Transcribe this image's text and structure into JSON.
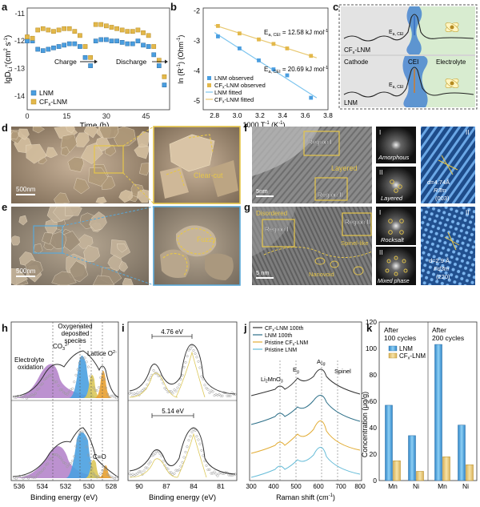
{
  "colors": {
    "lnm": "#4a9ee0",
    "cflnm": "#e3b84a",
    "lnm_fill": "#5aa8e8",
    "cflnm_fill": "#ead28a",
    "sem_box_yellow": "#e6c64a",
    "sem_box_blue": "#5aa8d8",
    "xps_purple": "#b07ec8",
    "xps_blue": "#4aa0e0",
    "xps_yellow": "#dcc85a",
    "xps_orange": "#e8a030",
    "raman_black": "#333333",
    "raman_teal": "#2c6f88",
    "raman_orange": "#e2ac34",
    "raman_lightblue": "#66bcd8"
  },
  "panel_labels": [
    "a",
    "b",
    "c",
    "d",
    "e",
    "f",
    "g",
    "h",
    "i",
    "j",
    "k"
  ],
  "panel_a": {
    "ylabel": "lgD",
    "ylabel_sub": "Li",
    "ylabel_sup": "+",
    "ylabel_unit": "(cm",
    "ylabel_unit_sup": "2",
    "ylabel_unit_end": " s",
    "ylabel_unit_sup2": "-1",
    "ylabel_close": ")",
    "xlabel": "Time (h)",
    "yticks": [
      "-11",
      "-12",
      "-13",
      "-14"
    ],
    "xticks": [
      "0",
      "15",
      "30",
      "45"
    ],
    "charge_label": "Charge",
    "discharge_label": "Discharge",
    "legend": [
      {
        "name": "LNM"
      },
      {
        "name_prefix": "CF",
        "name_sub": "x",
        "name_suffix": "-LNM"
      }
    ]
  },
  "panel_b": {
    "ylabel_pre": "ln (R",
    "ylabel_sup": "-1",
    "ylabel_mid": ") (Ohm",
    "ylabel_sup2": "-1",
    "ylabel_close": ")",
    "xlabel_pre": "1000 T",
    "xlabel_sup": "-1",
    "xlabel_post": " (K",
    "xlabel_sup2": "-1",
    "xlabel_close": ")",
    "yticks": [
      "-2",
      "-3",
      "-4",
      "-5"
    ],
    "xticks": [
      "2.8",
      "3.0",
      "3.2",
      "3.4",
      "3.6",
      "3.8"
    ],
    "ea_top_text": "E",
    "ea_top_sub": "a, CEI",
    "ea_top_value": " = 12.58 kJ mol",
    "ea_top_sup": "-1",
    "ea_bot_text": "E",
    "ea_bot_sub": "a, CEI",
    "ea_bot_value": " = 20.69 kJ mol",
    "ea_bot_sup": "-1",
    "legend": [
      {
        "text": "LNM observed"
      },
      {
        "text_prefix": "CF",
        "text_sub": "x",
        "text_suffix": "-LNM observed"
      },
      {
        "text": "LNM fitted"
      },
      {
        "text_prefix": "CF",
        "text_sub": "x",
        "text_suffix": "-LNM fitted"
      }
    ]
  },
  "panel_c": {
    "top_label_prefix": "CF",
    "top_label_sub": "x",
    "top_label_suffix": "-LNM",
    "ea_label": "E",
    "ea_label_sub": "a, CEI",
    "cathode": "Cathode",
    "cei": "CEI",
    "electrolyte": "Electrolyte",
    "bottom_label": "LNM"
  },
  "panel_d": {
    "scale": "500nm",
    "zoom_label": "Clear-cut"
  },
  "panel_e": {
    "scale": "500nm",
    "zoom_label": "Fuzzy"
  },
  "panel_f": {
    "scale": "5nm",
    "region1": "Region I",
    "region2": "Region II",
    "layered": "Layered",
    "fft1_num": "I",
    "fft1_label": "Amorphous",
    "fft2_num": "II",
    "fft2_label": "Layered",
    "lattice_num": "II",
    "lattice_d": "d=4.74Å",
    "lattice_group": "R3̄m",
    "lattice_plane": "(003)"
  },
  "panel_g": {
    "scale": "5 nm",
    "disordered": "Disordered",
    "region1": "Region I",
    "region2": "Region II",
    "spinel": "Spinel-like",
    "nanovoid": "Nanovoid",
    "fft1_num": "I",
    "fft1_label": "Rocksalt",
    "fft2_num": "II",
    "fft2_label": "Mixed phase",
    "lattice_num": "II",
    "lattice_d": "d=2.9 Å",
    "lattice_group": "Fd3̄m",
    "lattice_plane": "(220)"
  },
  "panel_h": {
    "xlabel": "Binding energy (eV)",
    "xticks": [
      "536",
      "534",
      "532",
      "530",
      "528"
    ],
    "oxygenated_1": "Oxygenated",
    "oxygenated_2": "deposited",
    "oxygenated_3": "species",
    "co3": "CO",
    "co3_sub": "3",
    "co3_sup": "2-",
    "lattice": "Lattice O",
    "lattice_sup": "2-",
    "electrolyte_1": "Electrolyte",
    "electrolyte_2": "oxidation",
    "co": "C=O"
  },
  "panel_i": {
    "xlabel": "Binding energy (eV)",
    "xticks": [
      "90",
      "87",
      "84",
      "81"
    ],
    "gap_top": "4.76 eV",
    "gap_bottom": "5.14 eV"
  },
  "panel_j": {
    "xlabel_pre": "Raman shift (cm",
    "xlabel_sup": "-1",
    "xlabel_close": ")",
    "xticks": [
      "300",
      "400",
      "500",
      "600",
      "700",
      "800"
    ],
    "legend": [
      {
        "prefix": "CF",
        "sub": "x",
        "suffix": "-LNM 100th"
      },
      {
        "text": "LNM 100th"
      },
      {
        "prefix": "Pristine CF",
        "sub": "x",
        "suffix": "-LNM"
      },
      {
        "text": "Pristine LNM"
      }
    ],
    "li2mno3": "Li",
    "li2mno3_sub": "2",
    "li2mno3_mid": "MnO",
    "li2mno3_sub2": "3",
    "eg": "E",
    "eg_sub": "g",
    "a1g": "A",
    "a1g_sub": "1g",
    "spinel": "Spinel"
  },
  "chart_data": [
    {
      "panel": "a",
      "type": "scatter",
      "xlabel": "Time (h)",
      "ylabel": "lgD_Li+ (cm2 s-1)",
      "xlim": [
        0,
        54
      ],
      "ylim": [
        -14.5,
        -10.8
      ],
      "series": [
        {
          "name": "LNM",
          "x": [
            0,
            2,
            4,
            6,
            8,
            10,
            12,
            14,
            16,
            18,
            20,
            22,
            24,
            26,
            28,
            30,
            32,
            34,
            36,
            38,
            40,
            42,
            44,
            46,
            48,
            50,
            52
          ],
          "values": [
            -12.0,
            -12.0,
            -12.3,
            -12.35,
            -12.3,
            -12.25,
            -12.2,
            -12.15,
            -12.1,
            -12.1,
            -12.2,
            -12.6,
            -12.9,
            -12.0,
            -11.95,
            -11.95,
            -12.0,
            -12.0,
            -12.05,
            -12.1,
            -12.1,
            -12.0,
            -12.15,
            -12.2,
            -12.5,
            -12.9,
            -13.6
          ]
        },
        {
          "name": "CFx-LNM",
          "x": [
            0,
            2,
            4,
            6,
            8,
            10,
            12,
            14,
            16,
            18,
            20,
            22,
            24,
            26,
            28,
            30,
            32,
            34,
            36,
            38,
            40,
            42,
            44,
            46,
            48,
            50,
            52
          ],
          "values": [
            -11.85,
            -11.9,
            -11.6,
            -11.55,
            -11.6,
            -11.65,
            -11.6,
            -11.55,
            -11.55,
            -11.65,
            -11.8,
            -12.2,
            -12.6,
            -11.4,
            -11.4,
            -11.45,
            -11.5,
            -11.55,
            -11.6,
            -11.65,
            -11.65,
            -11.6,
            -11.7,
            -11.8,
            -12.2,
            -12.7,
            -13.3
          ]
        }
      ]
    },
    {
      "panel": "b",
      "type": "scatter",
      "xlabel": "1000 T-1 (K-1)",
      "ylabel": "ln (R-1) (Ohm-1)",
      "xlim": [
        2.7,
        3.8
      ],
      "ylim": [
        -5.3,
        -1.9
      ],
      "series": [
        {
          "name": "LNM observed",
          "x": [
            2.83,
            3.02,
            3.19,
            3.32,
            3.44,
            3.65
          ],
          "values": [
            -2.85,
            -3.25,
            -3.65,
            -3.95,
            -4.15,
            -4.9
          ]
        },
        {
          "name": "CFx-LNM observed",
          "x": [
            2.83,
            3.02,
            3.19,
            3.32,
            3.44,
            3.65
          ],
          "values": [
            -2.5,
            -2.75,
            -2.95,
            -3.1,
            -3.25,
            -3.5
          ]
        }
      ]
    },
    {
      "panel": "k",
      "type": "bar",
      "ylabel": "Concentration (μg/g)",
      "ylim": [
        0,
        120
      ],
      "yticks": [
        "0",
        "20",
        "40",
        "60",
        "80",
        "100",
        "120"
      ],
      "group_titles": [
        [
          "After",
          "100 cycles"
        ],
        [
          "After",
          "200 cycles"
        ]
      ],
      "categories": [
        "Mn",
        "Ni",
        "Mn",
        "Ni"
      ],
      "series": [
        {
          "name": "LNM",
          "values": [
            57,
            34,
            103,
            42
          ]
        },
        {
          "name": "CFx-LNM",
          "values": [
            15,
            7,
            18,
            12
          ]
        }
      ],
      "legend_lnm": "LNM",
      "legend_cf_prefix": "CF",
      "legend_cf_sub": "x",
      "legend_cf_suffix": "-LNM"
    }
  ]
}
